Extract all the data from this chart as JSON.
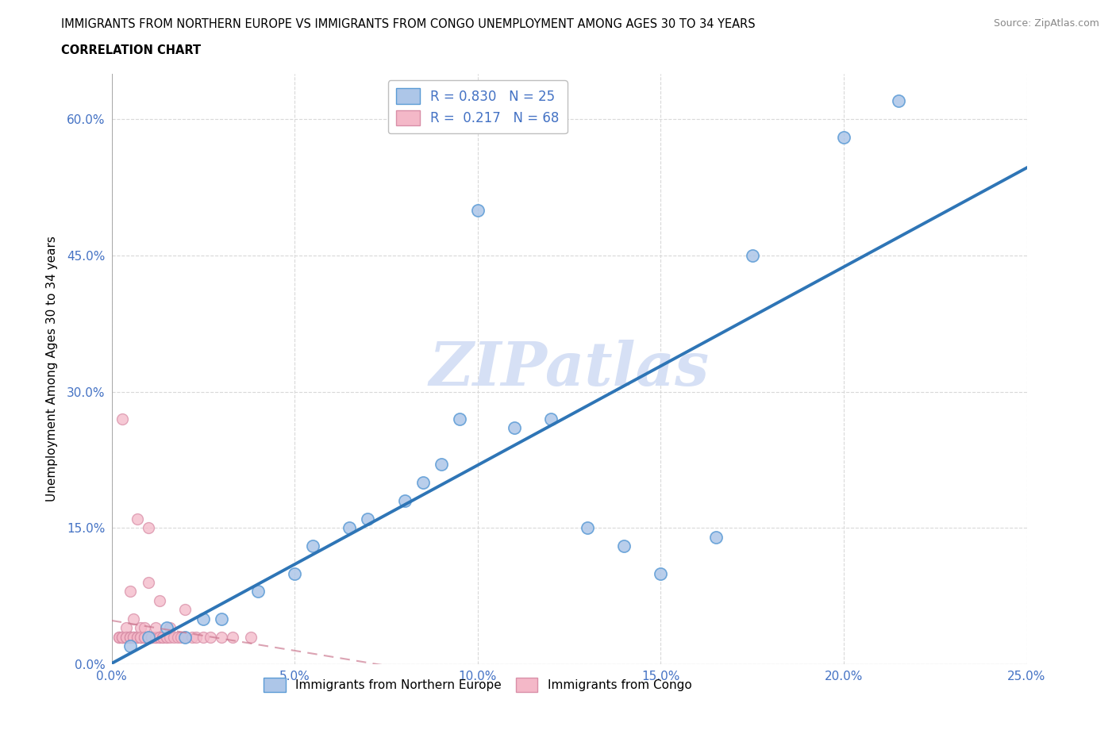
{
  "title_line1": "IMMIGRANTS FROM NORTHERN EUROPE VS IMMIGRANTS FROM CONGO UNEMPLOYMENT AMONG AGES 30 TO 34 YEARS",
  "title_line2": "CORRELATION CHART",
  "source": "Source: ZipAtlas.com",
  "ylabel": "Unemployment Among Ages 30 to 34 years",
  "blue_R": 0.83,
  "blue_N": 25,
  "pink_R": 0.217,
  "pink_N": 68,
  "blue_color": "#adc6e8",
  "blue_edge_color": "#5b9bd5",
  "blue_line_color": "#2e75b6",
  "pink_color": "#f4b8c8",
  "pink_edge_color": "#d98fa8",
  "pink_line_color": "#c9728a",
  "watermark": "ZIPatlas",
  "watermark_color": "#d6e0f5",
  "xlim": [
    0,
    0.25
  ],
  "ylim": [
    0,
    0.65
  ],
  "xticks": [
    0.0,
    0.05,
    0.1,
    0.15,
    0.2,
    0.25
  ],
  "yticks": [
    0.0,
    0.15,
    0.3,
    0.45,
    0.6
  ],
  "blue_scatter_x": [
    0.005,
    0.01,
    0.015,
    0.02,
    0.025,
    0.03,
    0.04,
    0.05,
    0.055,
    0.065,
    0.07,
    0.08,
    0.085,
    0.09,
    0.095,
    0.1,
    0.11,
    0.12,
    0.13,
    0.14,
    0.15,
    0.165,
    0.175,
    0.2,
    0.215
  ],
  "blue_scatter_y": [
    0.02,
    0.03,
    0.04,
    0.03,
    0.05,
    0.05,
    0.08,
    0.1,
    0.13,
    0.15,
    0.16,
    0.18,
    0.2,
    0.22,
    0.27,
    0.5,
    0.26,
    0.27,
    0.15,
    0.13,
    0.1,
    0.14,
    0.45,
    0.58,
    0.62
  ],
  "pink_scatter_x": [
    0.002,
    0.002,
    0.002,
    0.003,
    0.003,
    0.003,
    0.003,
    0.003,
    0.004,
    0.004,
    0.004,
    0.004,
    0.004,
    0.005,
    0.005,
    0.005,
    0.005,
    0.005,
    0.005,
    0.006,
    0.006,
    0.006,
    0.006,
    0.007,
    0.007,
    0.007,
    0.007,
    0.008,
    0.008,
    0.008,
    0.008,
    0.008,
    0.009,
    0.009,
    0.009,
    0.009,
    0.01,
    0.01,
    0.01,
    0.01,
    0.01,
    0.011,
    0.011,
    0.011,
    0.012,
    0.012,
    0.012,
    0.013,
    0.013,
    0.013,
    0.014,
    0.014,
    0.015,
    0.015,
    0.016,
    0.016,
    0.017,
    0.018,
    0.019,
    0.02,
    0.02,
    0.022,
    0.023,
    0.025,
    0.027,
    0.03,
    0.033,
    0.038
  ],
  "pink_scatter_y": [
    0.03,
    0.03,
    0.03,
    0.03,
    0.03,
    0.03,
    0.03,
    0.27,
    0.03,
    0.03,
    0.03,
    0.04,
    0.03,
    0.03,
    0.03,
    0.03,
    0.03,
    0.08,
    0.03,
    0.03,
    0.03,
    0.05,
    0.03,
    0.03,
    0.03,
    0.16,
    0.03,
    0.03,
    0.03,
    0.03,
    0.04,
    0.03,
    0.03,
    0.03,
    0.04,
    0.03,
    0.03,
    0.03,
    0.03,
    0.09,
    0.15,
    0.03,
    0.03,
    0.03,
    0.03,
    0.03,
    0.04,
    0.03,
    0.03,
    0.07,
    0.03,
    0.03,
    0.03,
    0.03,
    0.03,
    0.04,
    0.03,
    0.03,
    0.03,
    0.03,
    0.06,
    0.03,
    0.03,
    0.03,
    0.03,
    0.03,
    0.03,
    0.03
  ],
  "background_color": "#ffffff",
  "grid_color": "#d9d9d9",
  "axis_color": "#4472c4",
  "legend_edge_color": "#bfbfbf"
}
